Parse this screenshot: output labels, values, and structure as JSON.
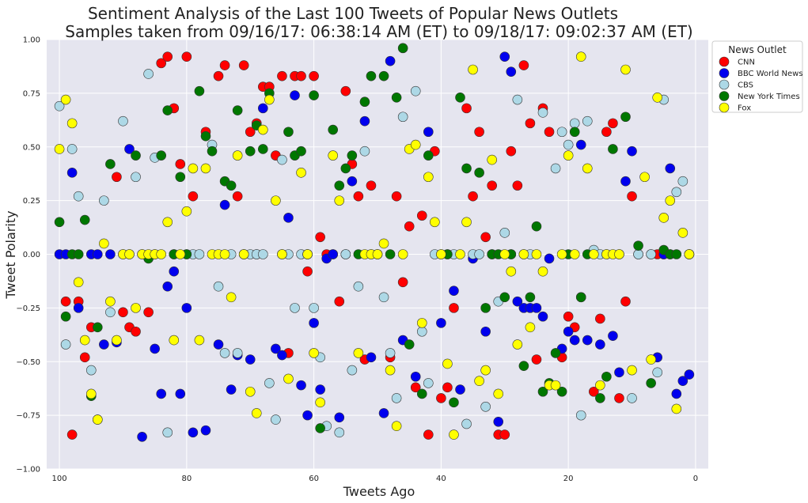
{
  "chart_data": {
    "type": "scatter",
    "title": [
      "Sentiment Analysis of the Last 100 Tweets of Popular News Outlets",
      "Samples taken from 09/16/17: 06:38:14 AM (ET) to 09/18/17: 09:02:37 AM (ET)"
    ],
    "xlabel": "Tweets Ago",
    "ylabel": "Tweet Polarity",
    "xlim": [
      102,
      -2
    ],
    "ylim": [
      -1.0,
      1.0
    ],
    "x_inverted": true,
    "xticks": [
      100,
      80,
      60,
      40,
      20,
      0
    ],
    "yticks": [
      1.0,
      0.75,
      0.5,
      0.25,
      0.0,
      -0.25,
      -0.5,
      -0.75,
      -1.0
    ],
    "xtick_labels": [
      "100",
      "80",
      "60",
      "40",
      "20",
      "0"
    ],
    "ytick_labels": [
      "1.00",
      "0.75",
      "0.50",
      "0.25",
      "0.00",
      "−0.25",
      "−0.50",
      "−0.75",
      "−1.00"
    ],
    "grid": true,
    "background": "#e5e5ef",
    "legend": {
      "title": "News Outlet",
      "placement": "outside right, top"
    },
    "series": [
      {
        "name": "CNN",
        "color": "#ff0000",
        "x": [
          99,
          98,
          97,
          96,
          95,
          91,
          90,
          89,
          88,
          86,
          84,
          83,
          82,
          81,
          80,
          79,
          77,
          75,
          74,
          72,
          71,
          70,
          69,
          68,
          67,
          66,
          65,
          64,
          63,
          62,
          61,
          60,
          59,
          58,
          57,
          56,
          55,
          54,
          53,
          52,
          51,
          50,
          48,
          47,
          46,
          45,
          44,
          43,
          42,
          41,
          40,
          39,
          38,
          36,
          35,
          34,
          33,
          32,
          31,
          30,
          29,
          28,
          27,
          26,
          25,
          24,
          23,
          21,
          20,
          19,
          18,
          16,
          15,
          14,
          13,
          12,
          11,
          10,
          9,
          7,
          6,
          5,
          4,
          1
        ],
        "y": [
          -0.22,
          -0.84,
          -0.22,
          -0.48,
          -0.34,
          0.36,
          -0.27,
          -0.34,
          -0.36,
          -0.27,
          0.89,
          0.92,
          0.68,
          0.42,
          0.92,
          0.27,
          0.57,
          0.83,
          0.88,
          0.27,
          0.88,
          0.57,
          0.61,
          0.78,
          0.78,
          0.46,
          0.83,
          -0.46,
          0.83,
          0.83,
          -0.08,
          0.83,
          0.08,
          -0.0,
          0.0,
          -0.22,
          0.76,
          0.42,
          0.27,
          -0.49,
          0.32,
          -0.0,
          -0.48,
          0.27,
          -0.13,
          0.13,
          -0.62,
          0.18,
          -0.84,
          0.48,
          -0.67,
          -0.62,
          -0.25,
          0.68,
          0.27,
          0.57,
          0.08,
          0.32,
          -0.84,
          -0.84,
          0.48,
          0.32,
          0.88,
          0.61,
          -0.49,
          0.68,
          0.57,
          -0.48,
          -0.29,
          -0.34,
          -0.2,
          -0.64,
          -0.3,
          0.57,
          0.61,
          -0.67,
          -0.22,
          0.27,
          0.0,
          0.0,
          0.0,
          0.0,
          0.0,
          0.0
        ]
      },
      {
        "name": "BBC World News",
        "color": "#0000ee",
        "x": [
          100,
          99,
          98,
          97,
          95,
          94,
          93,
          92,
          91,
          89,
          87,
          85,
          84,
          83,
          82,
          81,
          80,
          79,
          77,
          75,
          74,
          73,
          72,
          70,
          69,
          68,
          66,
          65,
          64,
          63,
          62,
          61,
          60,
          59,
          58,
          57,
          56,
          55,
          54,
          52,
          51,
          49,
          48,
          46,
          44,
          42,
          40,
          38,
          37,
          35,
          33,
          32,
          31,
          30,
          29,
          28,
          27,
          26,
          25,
          24,
          23,
          21,
          20,
          19,
          18,
          17,
          15,
          13,
          12,
          11,
          10,
          6,
          5,
          4,
          3,
          2,
          1
        ],
        "y": [
          0.0,
          0.0,
          0.38,
          -0.25,
          0.0,
          0.0,
          -0.42,
          0.0,
          -0.41,
          0.49,
          -0.85,
          -0.44,
          -0.65,
          -0.15,
          -0.08,
          -0.65,
          -0.25,
          -0.83,
          -0.82,
          -0.42,
          0.23,
          -0.63,
          -0.47,
          -0.49,
          0.0,
          0.68,
          -0.44,
          -0.47,
          0.17,
          0.74,
          -0.61,
          -0.75,
          -0.32,
          -0.63,
          -0.02,
          -0.0,
          -0.76,
          0.0,
          0.34,
          0.62,
          -0.48,
          -0.74,
          0.9,
          -0.4,
          -0.57,
          0.57,
          -0.32,
          -0.17,
          -0.63,
          -0.02,
          -0.36,
          0.0,
          -0.78,
          0.92,
          0.85,
          -0.22,
          -0.25,
          -0.25,
          -0.25,
          -0.29,
          -0.02,
          -0.44,
          -0.36,
          -0.4,
          0.51,
          -0.4,
          -0.42,
          -0.38,
          -0.55,
          0.34,
          0.48,
          -0.48,
          0.0,
          0.4,
          -0.65,
          -0.59,
          -0.56
        ]
      },
      {
        "name": "CBS",
        "color": "#add8e6",
        "x": [
          100,
          99,
          98,
          97,
          95,
          94,
          93,
          92,
          90,
          89,
          88,
          86,
          85,
          83,
          82,
          80,
          79,
          78,
          76,
          75,
          74,
          73,
          72,
          71,
          70,
          69,
          68,
          67,
          66,
          65,
          64,
          63,
          62,
          61,
          60,
          59,
          58,
          56,
          55,
          54,
          53,
          52,
          51,
          49,
          48,
          47,
          46,
          44,
          43,
          42,
          41,
          39,
          38,
          36,
          35,
          34,
          33,
          31,
          30,
          29,
          28,
          27,
          26,
          24,
          22,
          21,
          20,
          19,
          18,
          17,
          16,
          15,
          14,
          12,
          10,
          9,
          7,
          6,
          5,
          3,
          2,
          1
        ],
        "y": [
          0.69,
          -0.42,
          0.49,
          0.27,
          -0.54,
          -0.77,
          0.25,
          -0.27,
          0.62,
          0.0,
          0.36,
          0.84,
          0.45,
          -0.83,
          0.0,
          0.0,
          0.0,
          0.0,
          0.51,
          -0.15,
          -0.46,
          0.0,
          -0.46,
          0.0,
          0.0,
          0.0,
          0.0,
          -0.6,
          -0.77,
          0.44,
          0.0,
          -0.25,
          0.0,
          0.0,
          -0.25,
          -0.48,
          -0.8,
          -0.83,
          0.0,
          -0.54,
          -0.15,
          0.48,
          0.0,
          -0.2,
          -0.46,
          -0.67,
          0.64,
          0.76,
          -0.36,
          -0.6,
          0.0,
          0.0,
          0.0,
          -0.79,
          0.0,
          0.0,
          -0.71,
          -0.22,
          0.1,
          0.0,
          0.72,
          0.0,
          0.0,
          0.66,
          0.4,
          0.57,
          0.51,
          0.61,
          -0.75,
          0.62,
          0.02,
          0.0,
          0.0,
          0.0,
          -0.67,
          0.0,
          0.0,
          -0.55,
          0.72,
          0.29,
          0.34,
          0.0
        ]
      },
      {
        "name": "New York Times",
        "color": "#007700",
        "x": [
          100,
          99,
          98,
          97,
          96,
          95,
          94,
          92,
          90,
          88,
          87,
          86,
          85,
          84,
          83,
          82,
          81,
          80,
          78,
          77,
          76,
          74,
          73,
          72,
          71,
          70,
          69,
          68,
          67,
          65,
          64,
          63,
          62,
          61,
          60,
          59,
          57,
          56,
          55,
          54,
          53,
          52,
          51,
          50,
          49,
          48,
          47,
          46,
          45,
          43,
          42,
          40,
          39,
          38,
          37,
          36,
          34,
          33,
          32,
          31,
          30,
          29,
          27,
          26,
          25,
          24,
          23,
          22,
          21,
          20,
          19,
          18,
          17,
          15,
          14,
          13,
          11,
          9,
          7,
          5,
          4,
          3,
          1
        ],
        "y": [
          0.15,
          -0.29,
          0.0,
          0.0,
          0.16,
          -0.66,
          -0.34,
          0.42,
          0.0,
          0.46,
          0.0,
          -0.02,
          0.0,
          0.46,
          0.67,
          0.0,
          0.36,
          0.0,
          0.76,
          0.55,
          0.48,
          0.34,
          0.32,
          0.67,
          0.0,
          0.48,
          0.6,
          0.49,
          0.75,
          0.0,
          0.57,
          0.46,
          0.48,
          0.0,
          0.74,
          -0.81,
          0.58,
          0.32,
          0.4,
          0.46,
          0.0,
          0.71,
          0.83,
          0.0,
          0.83,
          0.0,
          0.73,
          0.96,
          -0.42,
          -0.65,
          0.46,
          0.0,
          0.0,
          -0.69,
          0.73,
          0.4,
          0.38,
          -0.25,
          0.0,
          0.0,
          -0.2,
          0.0,
          -0.52,
          -0.2,
          0.13,
          -0.64,
          -0.6,
          -0.46,
          -0.64,
          0.0,
          0.57,
          -0.2,
          0.0,
          -0.67,
          -0.57,
          0.49,
          0.64,
          0.04,
          -0.6,
          0.02,
          0.0,
          0.0,
          0.0
        ]
      },
      {
        "name": "Fox",
        "color": "#ffff00",
        "x": [
          100,
          99,
          98,
          97,
          96,
          95,
          94,
          93,
          92,
          91,
          90,
          89,
          88,
          87,
          86,
          85,
          84,
          83,
          82,
          81,
          80,
          79,
          78,
          77,
          76,
          75,
          74,
          73,
          72,
          71,
          70,
          69,
          68,
          67,
          66,
          65,
          64,
          62,
          61,
          60,
          59,
          57,
          56,
          53,
          52,
          51,
          50,
          49,
          48,
          47,
          46,
          45,
          44,
          43,
          42,
          41,
          40,
          39,
          38,
          37,
          36,
          35,
          34,
          33,
          32,
          31,
          30,
          29,
          28,
          27,
          26,
          25,
          24,
          23,
          22,
          21,
          20,
          19,
          18,
          17,
          16,
          15,
          14,
          13,
          12,
          11,
          10,
          8,
          7,
          6,
          5,
          4,
          3,
          2,
          1
        ],
        "y": [
          0.49,
          0.72,
          0.61,
          -0.13,
          -0.4,
          -0.65,
          -0.77,
          0.05,
          -0.22,
          -0.4,
          0.0,
          0.0,
          -0.25,
          0.0,
          0.0,
          0.0,
          0.0,
          0.15,
          -0.4,
          0.0,
          0.2,
          0.4,
          -0.4,
          0.4,
          0.0,
          0.0,
          0.0,
          -0.2,
          0.46,
          0.0,
          -0.64,
          -0.74,
          0.58,
          0.72,
          0.25,
          0.0,
          -0.58,
          0.38,
          0.0,
          -0.46,
          -0.69,
          0.46,
          0.25,
          -0.46,
          0.0,
          0.0,
          0.0,
          0.05,
          -0.54,
          -0.8,
          0.0,
          0.49,
          0.51,
          -0.32,
          0.36,
          0.15,
          0.0,
          -0.51,
          -0.84,
          0.0,
          0.15,
          0.86,
          -0.59,
          -0.54,
          0.44,
          -0.65,
          0.0,
          -0.08,
          -0.42,
          0.0,
          -0.34,
          0.0,
          -0.08,
          -0.61,
          -0.61,
          0.0,
          0.46,
          0.0,
          0.92,
          0.4,
          0.0,
          -0.61,
          0.0,
          0.0,
          0.0,
          0.86,
          -0.54,
          0.36,
          -0.49,
          0.73,
          0.17,
          0.25,
          -0.72,
          0.1,
          0.0
        ]
      }
    ]
  }
}
